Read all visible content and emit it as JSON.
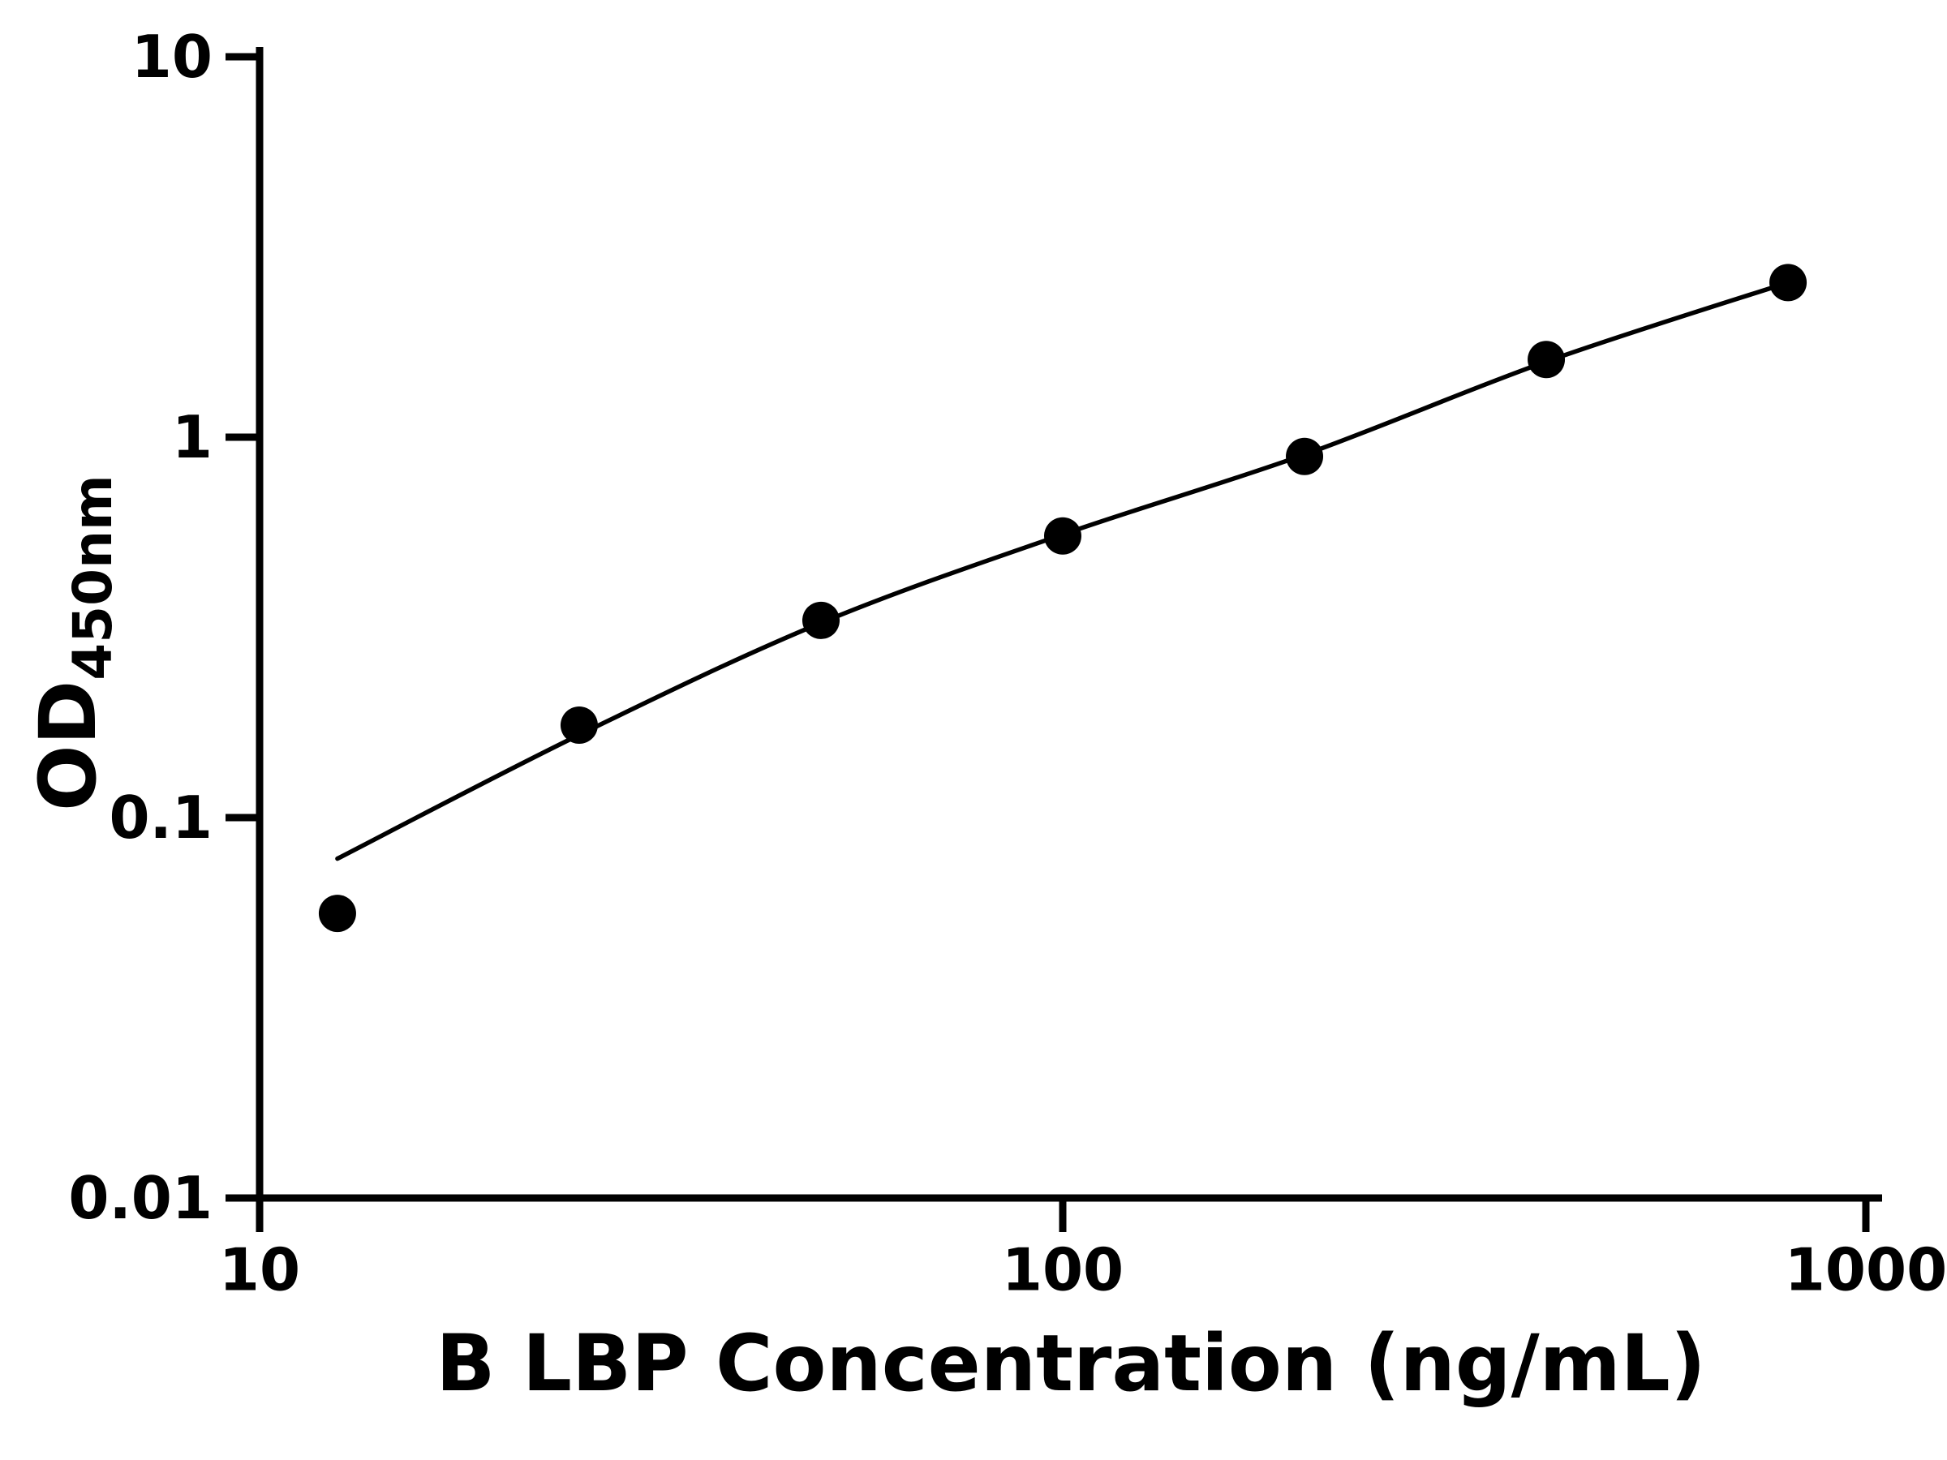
{
  "chart_data": {
    "type": "scatter",
    "title": "",
    "xlabel": "B LBP Concentration (ng/mL)",
    "ylabel": "OD",
    "ylabel_subscript": "450nm",
    "x_scale": "log",
    "y_scale": "log",
    "xlim": [
      10,
      1000
    ],
    "ylim": [
      0.01,
      10
    ],
    "x_ticks": [
      10,
      100,
      1000
    ],
    "x_tick_labels": [
      "10",
      "100",
      "1000"
    ],
    "y_ticks": [
      0.01,
      0.1,
      1,
      10
    ],
    "y_tick_labels": [
      "0.01",
      "0.1",
      "1",
      "10"
    ],
    "grid": false,
    "legend": false,
    "background_color": "#ffffff",
    "axis_color": "#000000",
    "series": [
      {
        "name": "standard-curve-points",
        "kind": "scatter",
        "marker": "filled-circle",
        "color": "#000000",
        "x": [
          12.5,
          25,
          50,
          100,
          200,
          400,
          800
        ],
        "y": [
          0.056,
          0.175,
          0.33,
          0.55,
          0.89,
          1.6,
          2.55
        ]
      },
      {
        "name": "fit-curve",
        "kind": "line",
        "color": "#000000",
        "x": [
          12.5,
          25,
          50,
          100,
          200,
          400,
          800
        ],
        "y": [
          0.078,
          0.165,
          0.325,
          0.555,
          0.9,
          1.58,
          2.55
        ]
      }
    ]
  }
}
